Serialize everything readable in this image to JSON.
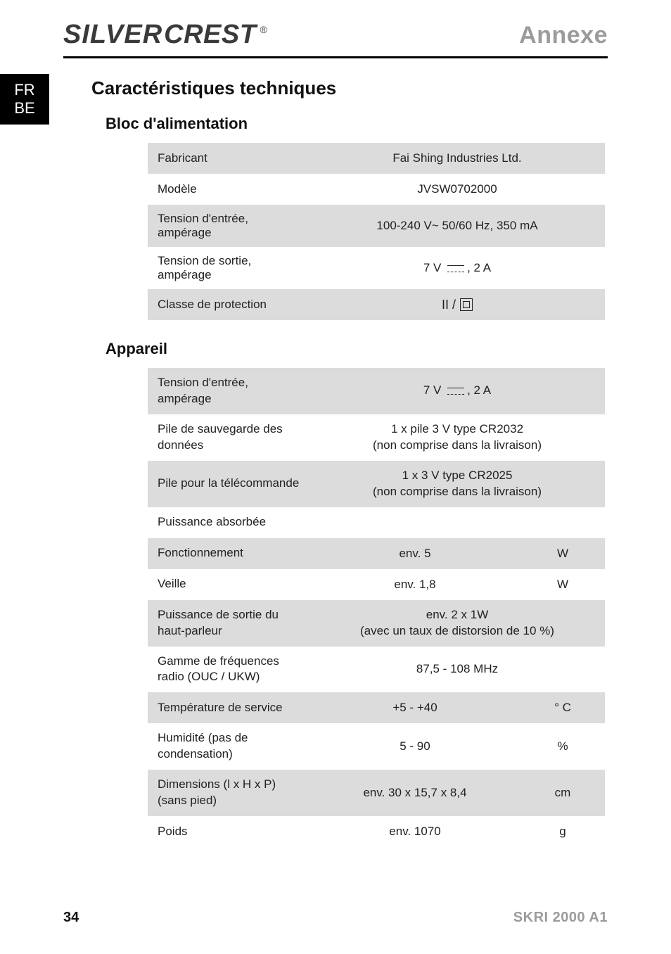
{
  "header": {
    "brand_word1": "SILVER",
    "brand_word2": "CREST",
    "brand_reg": "®",
    "section": "Annexe"
  },
  "side_tab": {
    "line1": "FR",
    "line2": "BE"
  },
  "headings": {
    "tech": "Caractéristiques techniques",
    "psu": "Bloc d'alimentation",
    "device": "Appareil"
  },
  "psu_table": {
    "rows": [
      {
        "label": "Fabricant",
        "value": "Fai Shing Industries Ltd."
      },
      {
        "label": "Modèle",
        "value": "JVSW0702000"
      },
      {
        "label": "Tension d'entrée, ampérage",
        "value": "100-240 V~ 50/60 Hz, 350 mA"
      },
      {
        "label": "Tension de sortie, ampérage",
        "value_pre": "7 V ",
        "value_post": ", 2 A",
        "dc": true
      },
      {
        "label": "Classe de protection",
        "protection": true,
        "roman": "II /"
      }
    ]
  },
  "device_table": {
    "rows": [
      {
        "label": "Tension d'entrée, ampérage",
        "colspan": true,
        "dc": true,
        "value_pre": "7 V ",
        "value_post": ", 2 A"
      },
      {
        "label": "Pile de sauvegarde des données",
        "colspan": true,
        "line1": "1 x pile 3 V type CR2032",
        "line2": "(non comprise dans la livraison)"
      },
      {
        "label": "Pile pour la télécommande",
        "colspan": true,
        "line1": "1 x 3 V type CR2025",
        "line2": "(non comprise dans la livraison)"
      },
      {
        "label": "Puissance absorbée",
        "header_row": true
      },
      {
        "label": "Fonctionnement",
        "value": "env. 5",
        "unit": "W"
      },
      {
        "label": "Veille",
        "value": "env. 1,8",
        "unit": "W"
      },
      {
        "label": "Puissance de sortie du haut-parleur",
        "colspan": true,
        "line1": "env. 2 x 1W",
        "line2": "(avec un taux de distorsion de 10 %)"
      },
      {
        "label": "Gamme de fréquences radio (OUC / UKW)",
        "colspan": true,
        "value": "87,5 - 108 MHz"
      },
      {
        "label": "Température de service",
        "value": "+5 - +40",
        "unit": "° C"
      },
      {
        "label": "Humidité (pas de condensation)",
        "value": "5 - 90",
        "unit": "%"
      },
      {
        "label": "Dimensions (l x H x P) (sans pied)",
        "value": "env. 30 x 15,7 x 8,4",
        "unit": "cm"
      },
      {
        "label": "Poids",
        "value": "env. 1070",
        "unit": "g"
      }
    ]
  },
  "footer": {
    "page": "34",
    "model": "SKRI 2000 A1"
  },
  "colors": {
    "row_shade": "#dcdcdc",
    "section_grey": "#9b9b9b",
    "rule": "#000000",
    "text": "#222222"
  }
}
